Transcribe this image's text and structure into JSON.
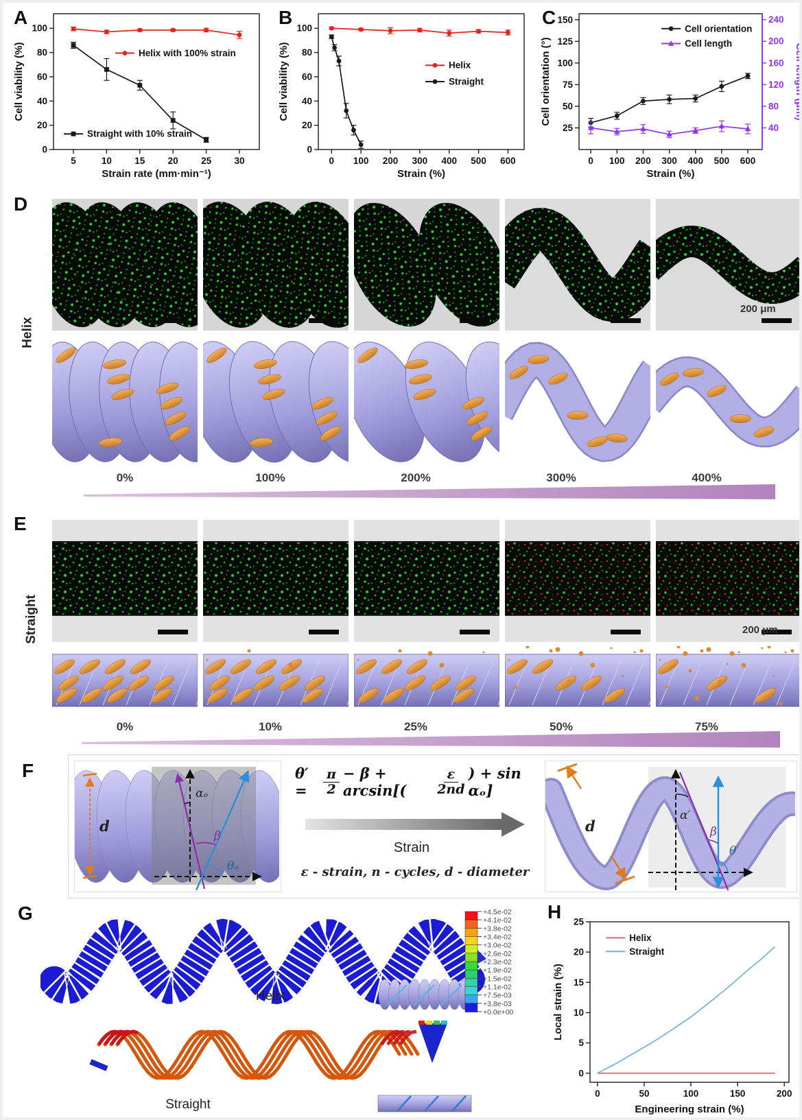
{
  "panels": {
    "A": {
      "label": "A"
    },
    "B": {
      "label": "B"
    },
    "C": {
      "label": "C"
    },
    "D": {
      "label": "D"
    },
    "E": {
      "label": "E"
    },
    "F": {
      "label": "F"
    },
    "G": {
      "label": "G"
    },
    "H": {
      "label": "H"
    }
  },
  "chart_data": [
    {
      "id": "A",
      "type": "line",
      "xlabel": "Strain rate (mm·min⁻¹)",
      "ylabel": "Cell viability (%)",
      "xlim": [
        2,
        33
      ],
      "ylim": [
        0,
        112
      ],
      "xticks": [
        5,
        10,
        15,
        20,
        25,
        30
      ],
      "yticks": [
        0,
        20,
        40,
        60,
        80,
        100
      ],
      "series": [
        {
          "name": "Helix with 100% strain",
          "color": "#e4231f",
          "marker": "circle",
          "x": [
            5,
            10,
            15,
            20,
            25,
            30
          ],
          "y": [
            99.5,
            97,
            98.5,
            98.5,
            98.5,
            94.5
          ],
          "err": [
            1.5,
            1.5,
            1,
            1,
            1.5,
            3
          ]
        },
        {
          "name": "Straight with 10% strain",
          "color": "#1a1a1a",
          "marker": "square",
          "x": [
            5,
            10,
            15,
            20,
            25
          ],
          "y": [
            86,
            66,
            53,
            24,
            8
          ],
          "err": [
            2.5,
            9,
            4,
            7,
            2
          ]
        }
      ]
    },
    {
      "id": "B",
      "type": "line",
      "xlabel": "Strain (%)",
      "ylabel": "Cell viability (%)",
      "xlim": [
        -45,
        655
      ],
      "ylim": [
        0,
        112
      ],
      "xticks": [
        0,
        100,
        200,
        300,
        400,
        500,
        600
      ],
      "yticks": [
        0,
        20,
        40,
        60,
        80,
        100
      ],
      "series": [
        {
          "name": "Helix",
          "color": "#e4231f",
          "marker": "circle",
          "x": [
            0,
            100,
            200,
            300,
            400,
            500,
            600
          ],
          "y": [
            100,
            99,
            98,
            98.5,
            96,
            97.5,
            96.5
          ],
          "err": [
            0.8,
            1,
            2.5,
            1.5,
            2.5,
            1.5,
            2
          ]
        },
        {
          "name": "Straight",
          "color": "#1a1a1a",
          "marker": "circle",
          "x": [
            0,
            10,
            25,
            50,
            75,
            100
          ],
          "y": [
            93,
            84,
            73,
            32,
            16,
            4
          ],
          "err": [
            1.5,
            2.5,
            4,
            6,
            4,
            3
          ]
        }
      ]
    },
    {
      "id": "C",
      "type": "line",
      "xlabel": "Strain (%)",
      "ylabel": "Cell orientation (°)",
      "xlim": [
        -45,
        655
      ],
      "ylim": [
        0,
        157
      ],
      "xticks": [
        0,
        100,
        200,
        300,
        400,
        500,
        600
      ],
      "yticks": [
        25,
        50,
        75,
        100,
        125,
        150
      ],
      "y2": {
        "lim": [
          0,
          251
        ],
        "ticks": [
          40,
          80,
          120,
          160,
          200,
          240
        ],
        "label": "Cell length (μm)",
        "color": "#9233ee"
      },
      "series": [
        {
          "name": "Cell orientation",
          "color": "#1a1a1a",
          "marker": "circle",
          "x": [
            0,
            100,
            200,
            300,
            400,
            500,
            600
          ],
          "y": [
            31,
            39,
            56,
            58,
            59,
            73,
            85
          ],
          "err": [
            5,
            4,
            4,
            5,
            4,
            6,
            3
          ]
        },
        {
          "name": "Cell length",
          "color": "#9233ee",
          "marker": "triangle",
          "axis": "y2",
          "x": [
            0,
            100,
            200,
            300,
            400,
            500,
            600
          ],
          "y": [
            40,
            33,
            38,
            28,
            35,
            43,
            38
          ],
          "err": [
            11,
            6,
            8,
            6,
            5,
            10,
            9
          ]
        }
      ]
    },
    {
      "id": "H",
      "type": "line",
      "xlabel": "Engineering strain (%)",
      "ylabel": "Local strain (%)",
      "xlim": [
        -8,
        205
      ],
      "ylim": [
        -1.5,
        25
      ],
      "xticks": [
        0,
        50,
        100,
        150,
        200
      ],
      "yticks": [
        0,
        5,
        10,
        15,
        20,
        25
      ],
      "series": [
        {
          "name": "Helix",
          "color": "#e06461",
          "marker": "none",
          "x": [
            0,
            190
          ],
          "y": [
            0,
            0
          ]
        },
        {
          "name": "Straight",
          "color": "#74aedd",
          "marker": "none",
          "x": [
            0,
            20,
            40,
            60,
            80,
            100,
            120,
            140,
            160,
            175,
            190
          ],
          "y": [
            0,
            1.6,
            3.4,
            5.2,
            7.2,
            9.3,
            11.7,
            14.2,
            16.9,
            18.8,
            20.9
          ]
        }
      ]
    }
  ],
  "panelD": {
    "row_label": "Helix",
    "strains": [
      "0%",
      "100%",
      "200%",
      "300%",
      "400%"
    ],
    "scale_label": "200 μm"
  },
  "panelE": {
    "row_label": "Straight",
    "strains": [
      "0%",
      "10%",
      "25%",
      "50%",
      "75%"
    ],
    "scale_label": "200 μm"
  },
  "panelF": {
    "equation": {
      "lhs": "θ′ =",
      "num1": "π",
      "den1": "2",
      "mid": "− β + arcsin[(",
      "num2": "ε",
      "den2": "2nd",
      "tail": ") + sin αₒ]"
    },
    "arrow_label": "Strain",
    "legend": "ε - strain, n - cycles, d - diameter",
    "left_labels": {
      "d": "d",
      "alpha": "αₒ",
      "beta": "β",
      "theta": "θₒ"
    },
    "right_labels": {
      "d": "d",
      "alpha": "α′",
      "beta": "β",
      "theta": "θ′"
    }
  },
  "panelG": {
    "helix_label": "Helix",
    "straight_label": "Straight",
    "colorbar": {
      "labels": [
        "+4.5e-02",
        "+4.1e-02",
        "+3.8e-02",
        "+3.4e-02",
        "+3.0e-02",
        "+2.6e-02",
        "+2.3e-02",
        "+1.9e-02",
        "+1.5e-02",
        "+1.1e-02",
        "+7.5e-03",
        "+3.8e-03",
        "+0.0e+00"
      ],
      "colors": [
        "#f51114",
        "#f6611c",
        "#fb9e1b",
        "#f2d51c",
        "#cfee1f",
        "#8ae22e",
        "#3bd83a",
        "#2fd06a",
        "#32d4a4",
        "#35d8d8",
        "#38a8e8",
        "#1d1de0"
      ]
    }
  },
  "colors": {
    "red": "#e4231f",
    "black": "#1a1a1a",
    "purple": "#9233ee",
    "helix_red": "#e06461",
    "straight_blue": "#74aedd",
    "fiber_lavender": "#a7a5de",
    "cell_orange": "#e09040",
    "wedge_purple": "#c795cc",
    "fea_blue": "#1b1bd2",
    "fea_orange": "#d4570e"
  }
}
